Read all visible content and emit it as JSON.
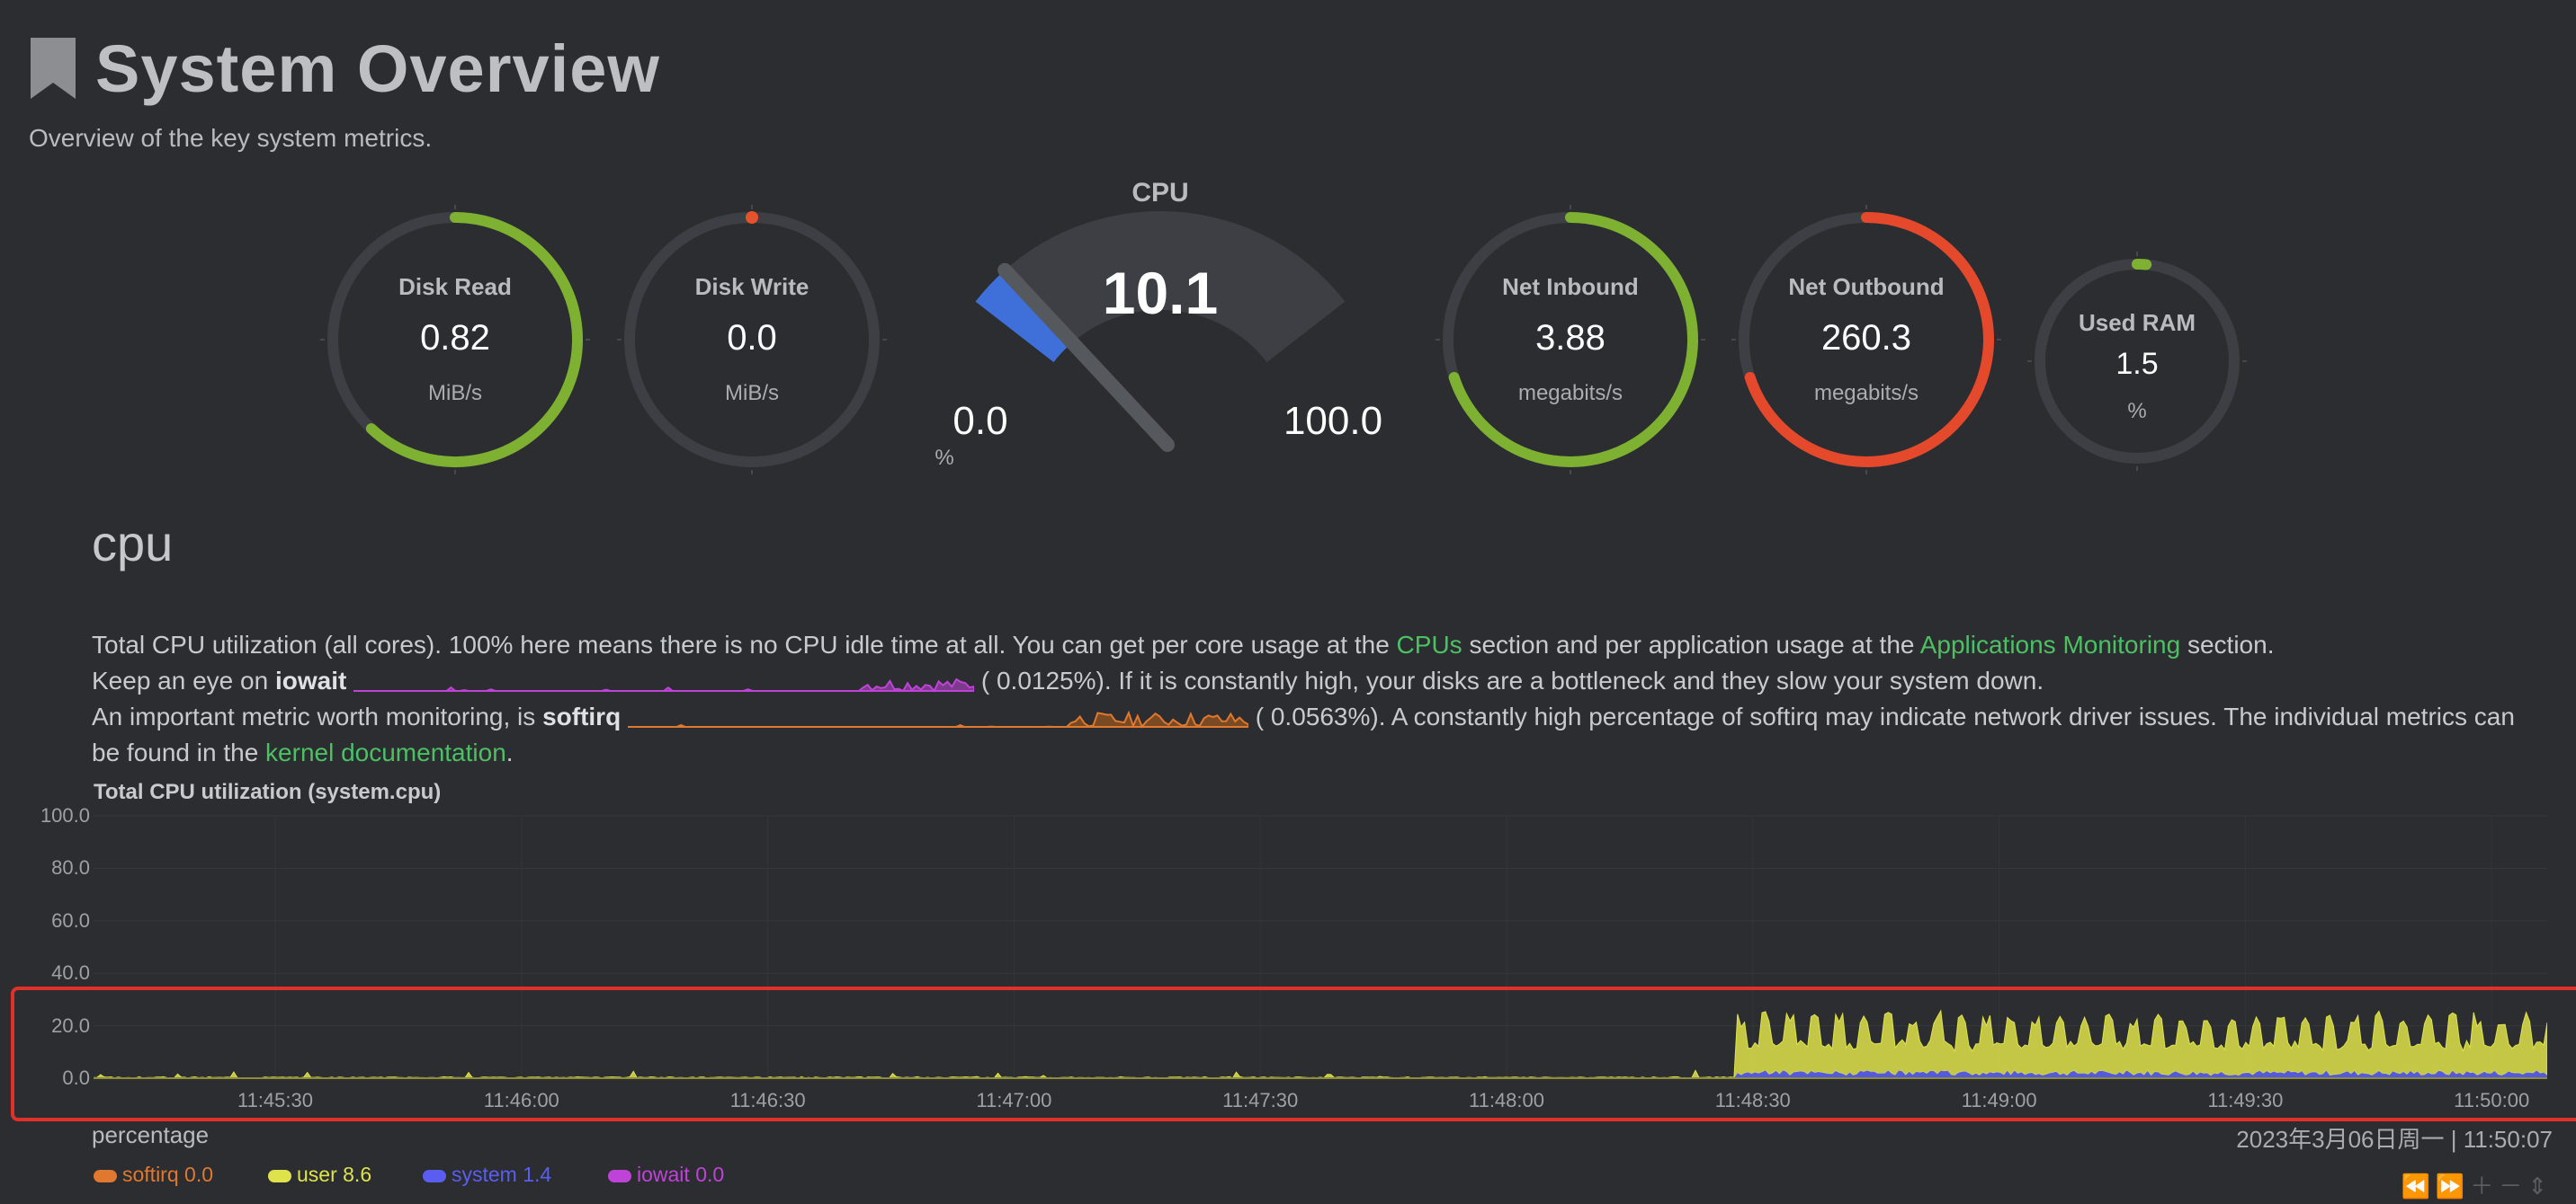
{
  "header": {
    "title": "System Overview",
    "subtitle": "Overview of the key system metrics."
  },
  "gauges": [
    {
      "title": "Disk Read",
      "value": "0.82",
      "unit": "MiB/s",
      "fill": 0.62,
      "color": "#7eb132"
    },
    {
      "title": "Disk Write",
      "value": "0.0",
      "unit": "MiB/s",
      "fill": 0.0,
      "color": "#e5522b"
    },
    {
      "title": "Net Inbound",
      "value": "3.88",
      "unit": "megabits/s",
      "fill": 0.7,
      "color": "#7eb132"
    },
    {
      "title": "Net Outbound",
      "value": "260.3",
      "unit": "megabits/s",
      "fill": 0.7,
      "color": "#e5492b"
    },
    {
      "title": "Used RAM",
      "value": "1.5",
      "unit": "%",
      "fill": 0.015,
      "color": "#7eb132"
    }
  ],
  "cpu_gauge": {
    "title": "CPU",
    "value": "10.1",
    "min": "0.0",
    "max": "100.0",
    "unit": "%",
    "percent": 10.1,
    "color": "#3f6fd8"
  },
  "section": {
    "title": "cpu",
    "line1": {
      "pre": "Total CPU utilization (all cores). 100% here means there is no CPU idle time at all. You can get per core usage at the ",
      "link1": "CPUs",
      "mid": " section and per application usage at the ",
      "link2": "Applications Monitoring",
      "post": " section."
    },
    "line2": {
      "pre": "Keep an eye on ",
      "bold": "iowait",
      "value": "(  0.0125%)",
      "post": ". If it is constantly high, your disks are a bottleneck and they slow your system down."
    },
    "line3": {
      "pre": "An important metric worth monitoring, is ",
      "bold": "softirq",
      "value": "(  0.0563%)",
      "post": ". A constantly high percentage of softirq may indicate network driver issues. The individual metrics can"
    },
    "line4": {
      "pre": "be found in the ",
      "link": "kernel documentation",
      "post": "."
    }
  },
  "chart": {
    "title": "Total CPU utilization (system.cpu)",
    "units": "percentage",
    "timestamp": "2023年3月06日周一 | 11:50:07",
    "controls": "⏪⏩＋－⇕"
  },
  "chart_data": {
    "type": "area",
    "title": "Total CPU utilization (system.cpu)",
    "ylabel": "percentage",
    "ylim": [
      0,
      100
    ],
    "yticks": [
      "100.0",
      "80.0",
      "60.0",
      "40.0",
      "20.0",
      "0.0"
    ],
    "xticks": [
      "11:45:30",
      "11:46:00",
      "11:46:30",
      "11:47:00",
      "11:47:30",
      "11:48:00",
      "11:48:30",
      "11:49:00",
      "11:49:30",
      "11:50:00"
    ],
    "series": [
      {
        "name": "softirq",
        "color": "#e0782f",
        "latest": "0.0",
        "before_1148": 0.0,
        "after_1148": 0.05
      },
      {
        "name": "user",
        "color": "#dfe34a",
        "latest": "8.6",
        "before_1148": 0.4,
        "after_1148": [
          9,
          23
        ]
      },
      {
        "name": "system",
        "color": "#5a5ef0",
        "latest": "1.4",
        "before_1148": 0.2,
        "after_1148": [
          1,
          3
        ]
      },
      {
        "name": "iowait",
        "color": "#c043d9",
        "latest": "0.0",
        "before_1148": 0.0,
        "after_1148": 0.0
      }
    ],
    "grid": true
  }
}
